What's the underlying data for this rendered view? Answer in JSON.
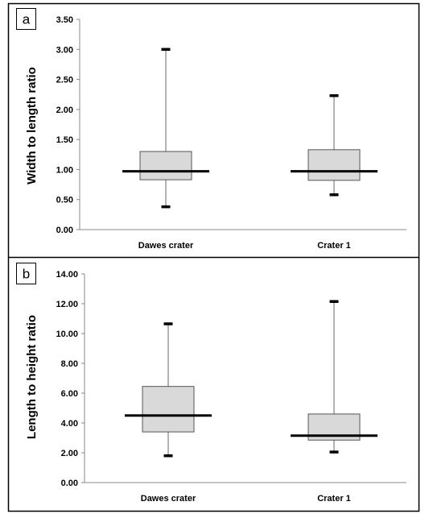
{
  "chart_data": [
    {
      "type": "box",
      "panel_label": "a",
      "ylabel": "Width to length ratio",
      "ylim": [
        0,
        3.5
      ],
      "yticks": [
        "0.00",
        "0.50",
        "1.00",
        "1.50",
        "2.00",
        "2.50",
        "3.00",
        "3.50"
      ],
      "tick_values": [
        0,
        0.5,
        1,
        1.5,
        2,
        2.5,
        3,
        3.5
      ],
      "categories": [
        "Dawes crater",
        "Crater 1"
      ],
      "boxes": [
        {
          "min": 0.38,
          "q1": 0.83,
          "median": 0.97,
          "q3": 1.3,
          "max": 3.0
        },
        {
          "min": 0.58,
          "q1": 0.82,
          "median": 0.97,
          "q3": 1.33,
          "max": 2.23
        }
      ],
      "box_color": "#d9d9d9"
    },
    {
      "type": "box",
      "panel_label": "b",
      "ylabel": "Length to height ratio",
      "ylim": [
        0,
        14
      ],
      "yticks": [
        "0.00",
        "2.00",
        "4.00",
        "6.00",
        "8.00",
        "10.00",
        "12.00",
        "14.00"
      ],
      "tick_values": [
        0,
        2,
        4,
        6,
        8,
        10,
        12,
        14
      ],
      "categories": [
        "Dawes crater",
        "Crater 1"
      ],
      "boxes": [
        {
          "min": 1.8,
          "q1": 3.4,
          "median": 4.5,
          "q3": 6.45,
          "max": 10.65
        },
        {
          "min": 2.05,
          "q1": 2.85,
          "median": 3.15,
          "q3": 4.6,
          "max": 12.15
        }
      ],
      "box_color": "#d9d9d9"
    }
  ]
}
